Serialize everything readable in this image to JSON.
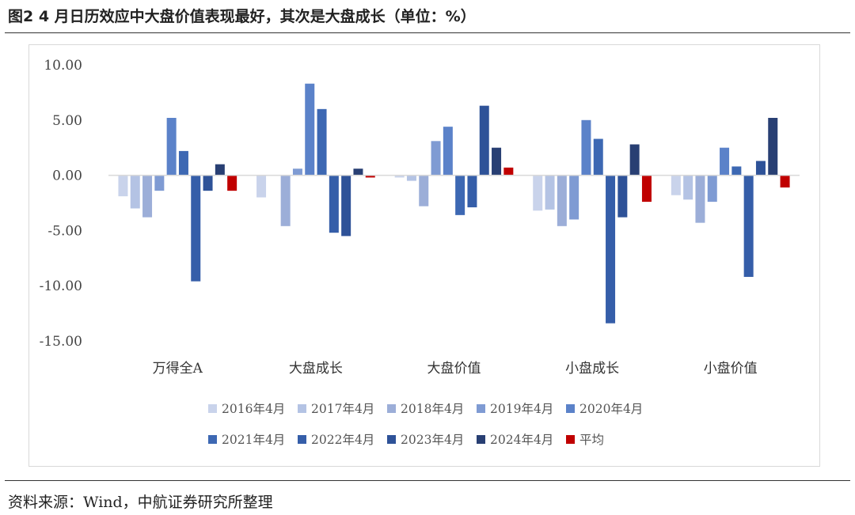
{
  "figure": {
    "title": "图2  4 月日历效应中大盘价值表现最好，其次是大盘成长（单位：%）",
    "source": "资料来源：Wind，中航证券研究所整理"
  },
  "colors": {
    "2016年4月": "#c9d3eb",
    "2017年4月": "#b4c3e4",
    "2018年4月": "#9caed8",
    "2019年4月": "#7f9bd3",
    "2020年4月": "#5b82c9",
    "2021年4月": "#3d68b3",
    "2022年4月": "#355ea9",
    "2023年4月": "#2e5298",
    "2024年4月": "#283f73",
    "平均": "#c00000"
  },
  "chart_data": {
    "type": "bar",
    "categories": [
      "万得全A",
      "大盘成长",
      "大盘价值",
      "小盘成长",
      "小盘价值"
    ],
    "ylim": [
      -15,
      10
    ],
    "yticks": [
      "10.00",
      "5.00",
      "0.00",
      "-5.00",
      "-10.00",
      "-15.00"
    ],
    "grid": false,
    "legend_position": "bottom",
    "series": [
      {
        "name": "2016年4月",
        "values": [
          -1.9,
          -2.0,
          -0.2,
          -3.2,
          -1.8
        ]
      },
      {
        "name": "2017年4月",
        "values": [
          -3.0,
          0.0,
          -0.5,
          -3.1,
          -2.2
        ]
      },
      {
        "name": "2018年4月",
        "values": [
          -3.8,
          -4.6,
          -2.8,
          -4.6,
          -4.3
        ]
      },
      {
        "name": "2019年4月",
        "values": [
          -1.4,
          0.6,
          3.1,
          -4.0,
          -2.4
        ]
      },
      {
        "name": "2020年4月",
        "values": [
          5.2,
          8.3,
          4.4,
          5.0,
          2.5
        ]
      },
      {
        "name": "2021年4月",
        "values": [
          2.2,
          6.0,
          -3.6,
          3.3,
          0.8
        ]
      },
      {
        "name": "2022年4月",
        "values": [
          -9.6,
          -5.2,
          -2.9,
          -13.4,
          -9.2
        ]
      },
      {
        "name": "2023年4月",
        "values": [
          -1.4,
          -5.5,
          6.3,
          -3.8,
          1.3
        ]
      },
      {
        "name": "2024年4月",
        "values": [
          1.0,
          0.6,
          2.5,
          2.8,
          5.2
        ]
      },
      {
        "name": "平均",
        "values": [
          -1.4,
          -0.2,
          0.7,
          -2.4,
          -1.1
        ]
      }
    ]
  }
}
